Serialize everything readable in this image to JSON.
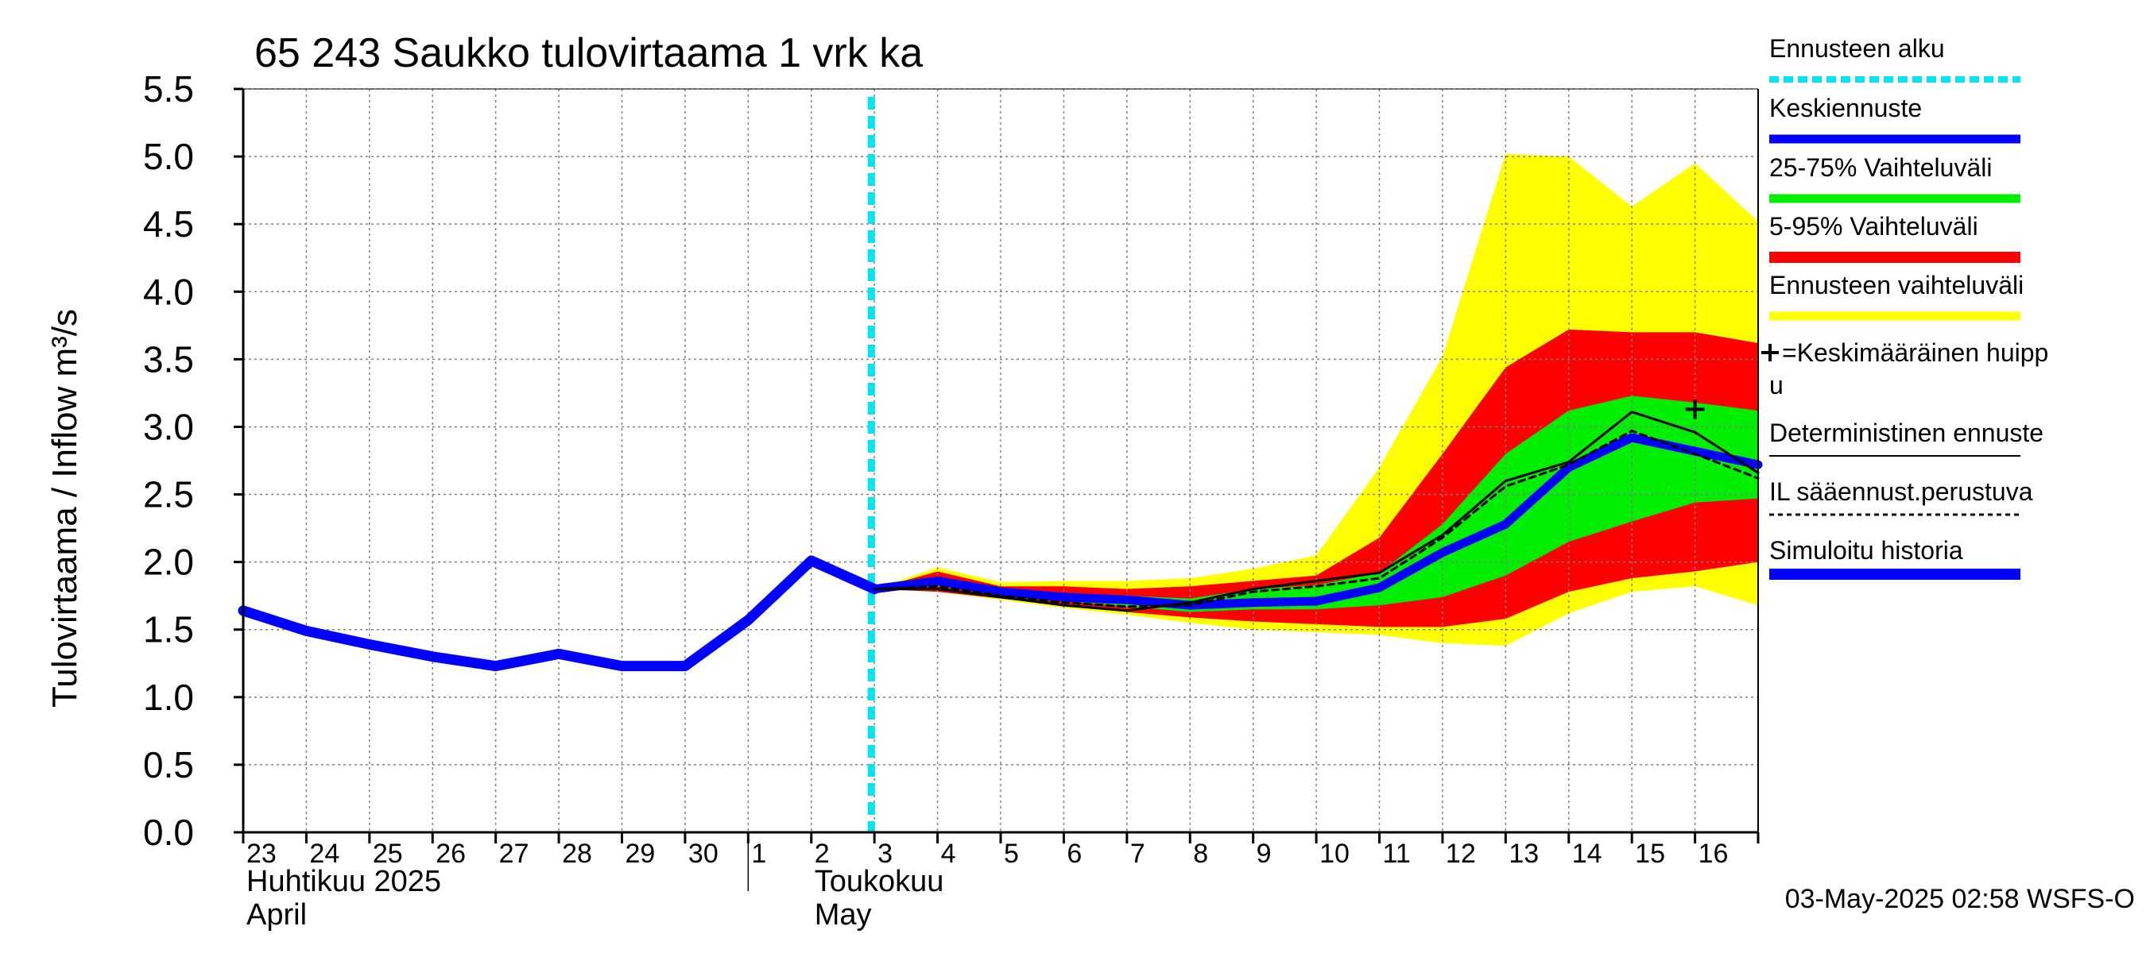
{
  "chart_data": {
    "type": "line",
    "title": "65 243 Saukko tulovirtaama 1 vrk ka",
    "ylabel": "Tulovirtaama / Inflow   m³/s",
    "ylim": [
      0,
      5.5
    ],
    "yticks": [
      "0.0",
      "0.5",
      "1.0",
      "1.5",
      "2.0",
      "2.5",
      "3.0",
      "3.5",
      "4.0",
      "4.5",
      "5.0",
      "5.5"
    ],
    "xlim": [
      0,
      24
    ],
    "day_labels": [
      "23",
      "24",
      "25",
      "26",
      "27",
      "28",
      "29",
      "30",
      "1",
      "2",
      "3",
      "4",
      "5",
      "6",
      "7",
      "8",
      "9",
      "10",
      "11",
      "12",
      "13",
      "14",
      "15",
      "16"
    ],
    "month_labels": [
      {
        "line1": "Huhtikuu  2025",
        "line2": "April",
        "at": 0
      },
      {
        "line1": "Toukokuu",
        "line2": "May",
        "at": 9
      }
    ],
    "month_divider_at": 8,
    "forecast_start": 9.95,
    "grid": true,
    "timestamp": "03-May-2025 02:58 WSFS-O",
    "legend": [
      {
        "label": "Ennusteen alku",
        "color": "#00e5ee",
        "style": "dashed-thick"
      },
      {
        "label": "Keskiennuste",
        "color": "#0000ff",
        "style": "thick"
      },
      {
        "label": "25-75% Vaihteluväli",
        "color": "#00ee00",
        "style": "thick"
      },
      {
        "label": "5-95% Vaihteluväli",
        "color": "#ff0000",
        "style": "thick"
      },
      {
        "label": "Ennusteen vaihteluväli",
        "color": "#ffff00",
        "style": "thick"
      },
      {
        "label_line1": "=Keskimääräinen huipp",
        "label_line2": "u",
        "color": "#000000",
        "style": "plus"
      },
      {
        "label": "Deterministinen ennuste",
        "color": "#000000",
        "style": "thin"
      },
      {
        "label": "IL sääennust.perustuva",
        "color": "#000000",
        "style": "dotted"
      },
      {
        "label": "Simuloitu historia",
        "color": "#0000ff",
        "style": "thick"
      }
    ],
    "colors": {
      "history": "#0000ff",
      "median": "#0000ff",
      "range_full": "#ffff00",
      "range_5_95": "#ff0000",
      "range_25_75": "#00ee00",
      "forecast_start": "#00e5ee",
      "deterministic": "#000000",
      "il_forecast": "#000000",
      "grid": "#808080"
    },
    "series": [
      {
        "name": "Simuloitu historia",
        "x": [
          0,
          1,
          2,
          3,
          4,
          5,
          6,
          7,
          8,
          9,
          10
        ],
        "values": [
          1.64,
          1.49,
          1.39,
          1.3,
          1.23,
          1.32,
          1.23,
          1.23,
          1.57,
          2.01,
          1.8
        ]
      },
      {
        "name": "Keskiennuste",
        "x": [
          10,
          11,
          12,
          13,
          14,
          15,
          16,
          17,
          18,
          19,
          20,
          21,
          22,
          24
        ],
        "values": [
          1.8,
          1.86,
          1.78,
          1.74,
          1.72,
          1.68,
          1.7,
          1.71,
          1.81,
          2.07,
          2.28,
          2.7,
          2.92,
          2.72
        ]
      },
      {
        "name": "Deterministinen ennuste",
        "x": [
          10,
          11,
          12,
          13,
          14,
          15,
          16,
          17,
          18,
          19,
          20,
          21,
          22,
          23,
          24
        ],
        "values": [
          1.8,
          1.8,
          1.74,
          1.68,
          1.64,
          1.7,
          1.8,
          1.86,
          1.92,
          2.2,
          2.6,
          2.74,
          3.11,
          2.96,
          2.66
        ]
      },
      {
        "name": "IL sääennust.perustuva",
        "x": [
          10,
          11,
          12,
          13,
          14,
          15,
          16,
          17,
          18,
          19,
          20,
          21,
          22,
          23,
          24
        ],
        "values": [
          1.8,
          1.82,
          1.75,
          1.7,
          1.67,
          1.68,
          1.78,
          1.82,
          1.88,
          2.18,
          2.56,
          2.72,
          2.97,
          2.8,
          2.62
        ]
      }
    ],
    "bands": [
      {
        "name": "Ennusteen vaihteluväli",
        "x": [
          10,
          11,
          12,
          13,
          14,
          15,
          16,
          17,
          18,
          19,
          20,
          21,
          22,
          23,
          24
        ],
        "upper": [
          1.8,
          1.96,
          1.85,
          1.86,
          1.86,
          1.88,
          1.95,
          2.05,
          2.7,
          3.52,
          5.02,
          5.0,
          4.63,
          4.95,
          4.52
        ],
        "lower": [
          1.8,
          1.78,
          1.72,
          1.66,
          1.61,
          1.55,
          1.5,
          1.48,
          1.46,
          1.4,
          1.38,
          1.62,
          1.78,
          1.82,
          1.68
        ]
      },
      {
        "name": "5-95% Vaihteluväli",
        "x": [
          10,
          11,
          12,
          13,
          14,
          15,
          16,
          17,
          18,
          19,
          20,
          21,
          22,
          23,
          24
        ],
        "upper": [
          1.8,
          1.93,
          1.82,
          1.82,
          1.8,
          1.82,
          1.86,
          1.9,
          2.18,
          2.8,
          3.44,
          3.72,
          3.7,
          3.7,
          3.62
        ],
        "lower": [
          1.8,
          1.78,
          1.73,
          1.68,
          1.63,
          1.59,
          1.56,
          1.54,
          1.52,
          1.52,
          1.58,
          1.78,
          1.88,
          1.93,
          2.0
        ]
      },
      {
        "name": "25-75% Vaihteluväli",
        "x": [
          10,
          11,
          12,
          13,
          14,
          15,
          16,
          17,
          18,
          19,
          20,
          21,
          22,
          23,
          24
        ],
        "upper": [
          1.8,
          1.88,
          1.8,
          1.77,
          1.75,
          1.73,
          1.8,
          1.83,
          1.92,
          2.28,
          2.8,
          3.12,
          3.23,
          3.18,
          3.12
        ],
        "lower": [
          1.8,
          1.82,
          1.76,
          1.71,
          1.67,
          1.63,
          1.65,
          1.65,
          1.68,
          1.74,
          1.9,
          2.15,
          2.3,
          2.44,
          2.47
        ]
      }
    ],
    "mean_peak": {
      "x": 23,
      "y": 3.13
    }
  }
}
